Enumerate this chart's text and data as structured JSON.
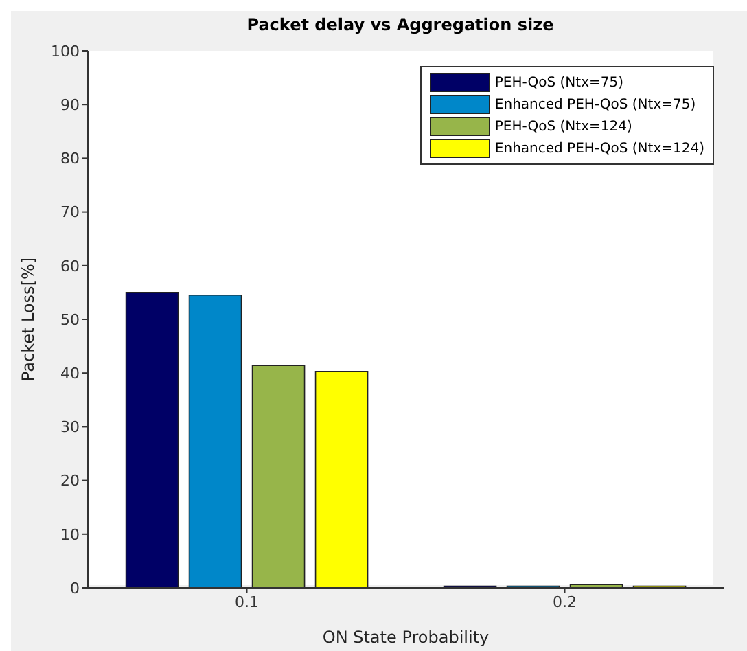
{
  "chart_data": {
    "type": "bar",
    "title": "Packet delay vs Aggregation size",
    "xlabel": "ON State Probability",
    "ylabel": "Packet Loss[%]",
    "categories": [
      "0.1",
      "0.2"
    ],
    "series": [
      {
        "name": "PEH-QoS (Ntx=75)",
        "color": "#000066",
        "values": [
          55,
          0.3
        ]
      },
      {
        "name": "Enhanced PEH-QoS (Ntx=75)",
        "color": "#0087c9",
        "values": [
          54.5,
          0.3
        ]
      },
      {
        "name": "PEH-QoS (Ntx=124)",
        "color": "#97b54a",
        "values": [
          41.4,
          0.6
        ]
      },
      {
        "name": "Enhanced PEH-QoS (Ntx=124)",
        "color": "#ffff00",
        "values": [
          40.3,
          0.3
        ]
      }
    ],
    "ylim": [
      0,
      100
    ],
    "yticks": [
      0,
      10,
      20,
      30,
      40,
      50,
      60,
      70,
      80,
      90,
      100
    ],
    "grid": false,
    "legend": "top right"
  }
}
